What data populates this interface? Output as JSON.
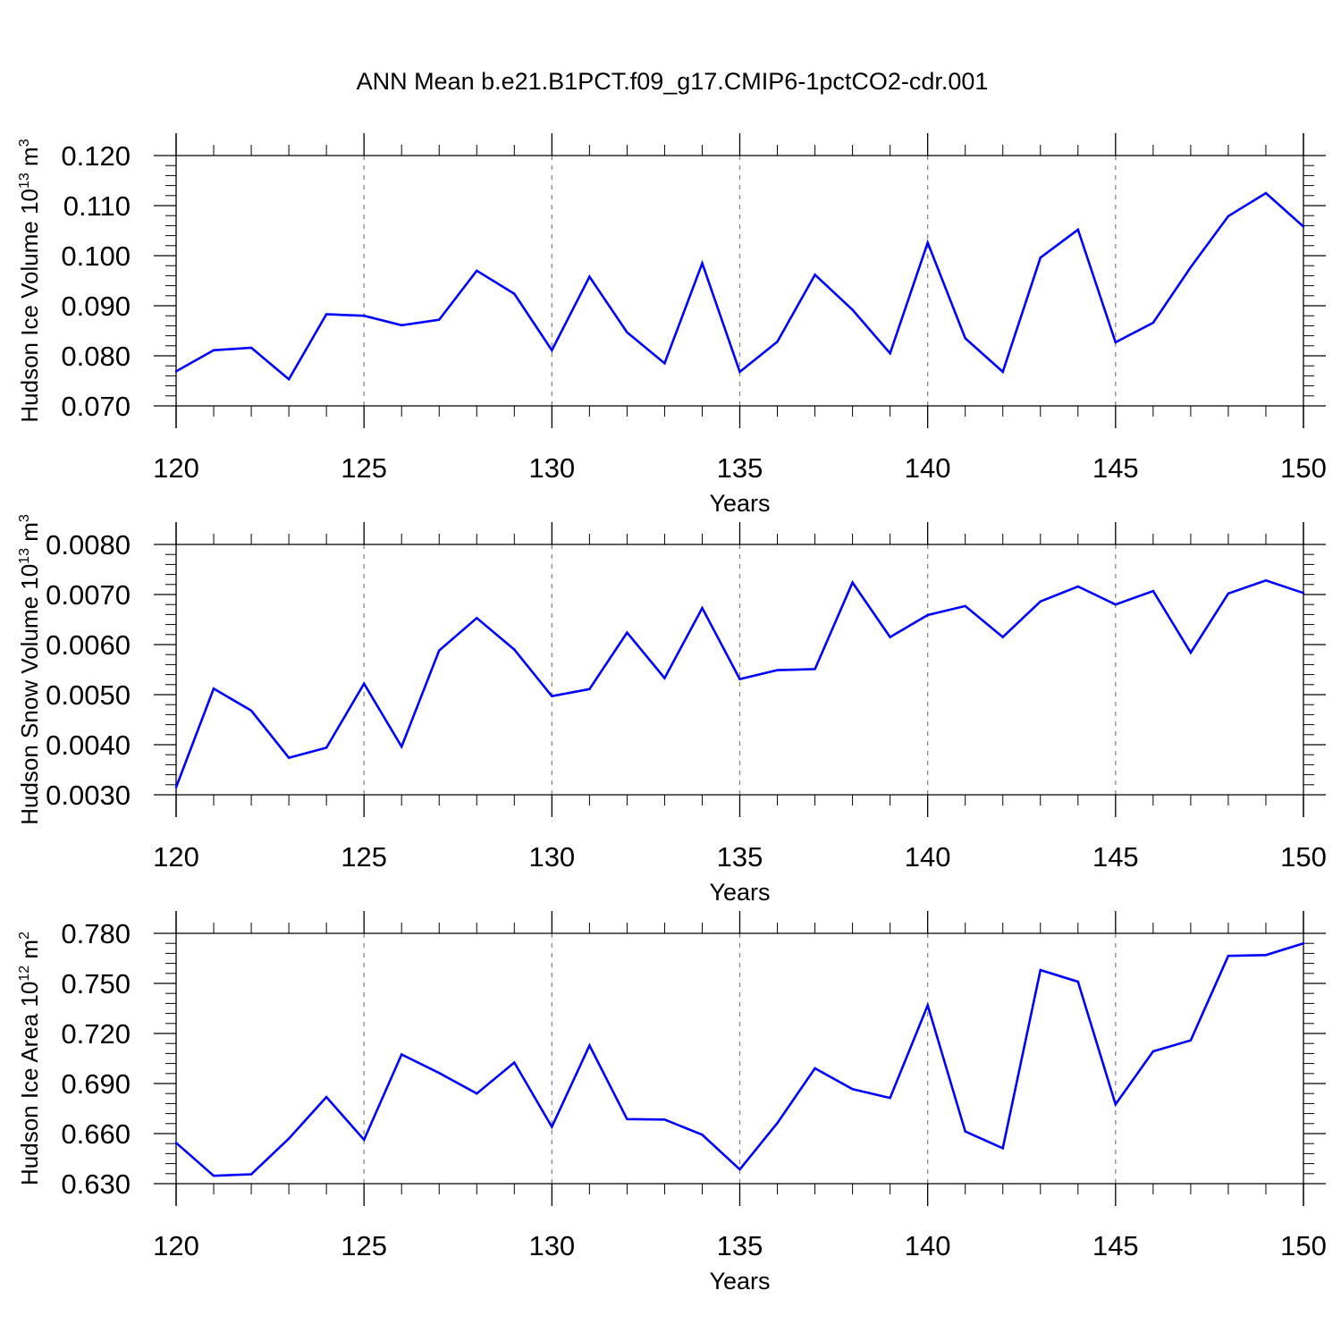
{
  "title": "ANN Mean b.e21.B1PCT.f09_g17.CMIP6-1pctCO2-cdr.001",
  "line_color": "#0000ff",
  "chart_data": [
    {
      "type": "line",
      "ylabel": {
        "main": "Hudson Ice Volume 10",
        "exp": "13",
        "unit": "m",
        "unit_exp": "3"
      },
      "xlabel": "Years",
      "xlim": [
        120,
        150
      ],
      "ylim": [
        0.07,
        0.12
      ],
      "xticks": [
        120,
        125,
        130,
        135,
        140,
        145,
        150
      ],
      "xtick_labels": [
        "120",
        "125",
        "130",
        "135",
        "140",
        "145",
        "150"
      ],
      "yticks": [
        0.07,
        0.08,
        0.09,
        0.1,
        0.11,
        0.12
      ],
      "ytick_labels": [
        "0.070",
        "0.080",
        "0.090",
        "0.100",
        "0.110",
        "0.120"
      ],
      "x": [
        120,
        121,
        122,
        123,
        124,
        125,
        126,
        127,
        128,
        129,
        130,
        131,
        132,
        133,
        134,
        135,
        136,
        137,
        138,
        139,
        140,
        141,
        142,
        143,
        144,
        145,
        146,
        147,
        148,
        149,
        150
      ],
      "values": [
        0.0769,
        0.0811,
        0.0816,
        0.0753,
        0.0883,
        0.088,
        0.0861,
        0.0872,
        0.097,
        0.0924,
        0.0811,
        0.0958,
        0.0847,
        0.0785,
        0.0985,
        0.0768,
        0.0828,
        0.0962,
        0.0892,
        0.0805,
        0.1026,
        0.0835,
        0.0768,
        0.0996,
        0.1052,
        0.0827,
        0.0866,
        0.0977,
        0.1079,
        0.1125,
        0.1058
      ]
    },
    {
      "type": "line",
      "ylabel": {
        "main": "Hudson Snow Volume 10",
        "exp": "13",
        "unit": "m",
        "unit_exp": "3"
      },
      "xlabel": "Years",
      "xlim": [
        120,
        150
      ],
      "ylim": [
        0.003,
        0.008
      ],
      "xticks": [
        120,
        125,
        130,
        135,
        140,
        145,
        150
      ],
      "xtick_labels": [
        "120",
        "125",
        "130",
        "135",
        "140",
        "145",
        "150"
      ],
      "yticks": [
        0.003,
        0.004,
        0.005,
        0.006,
        0.007,
        0.008
      ],
      "ytick_labels": [
        "0.0030",
        "0.0040",
        "0.0050",
        "0.0060",
        "0.0070",
        "0.0080"
      ],
      "x": [
        120,
        121,
        122,
        123,
        124,
        125,
        126,
        127,
        128,
        129,
        130,
        131,
        132,
        133,
        134,
        135,
        136,
        137,
        138,
        139,
        140,
        141,
        142,
        143,
        144,
        145,
        146,
        147,
        148,
        149,
        150
      ],
      "values": [
        0.00315,
        0.00512,
        0.00468,
        0.00374,
        0.00394,
        0.00522,
        0.00396,
        0.00588,
        0.00653,
        0.0059,
        0.00497,
        0.00511,
        0.00624,
        0.00533,
        0.00673,
        0.00531,
        0.00549,
        0.00551,
        0.00724,
        0.00615,
        0.00659,
        0.00677,
        0.00615,
        0.00686,
        0.00716,
        0.0068,
        0.00707,
        0.00584,
        0.00702,
        0.00728,
        0.00703
      ]
    },
    {
      "type": "line",
      "ylabel": {
        "main": "Hudson Ice Area 10",
        "exp": "12",
        "unit": "m",
        "unit_exp": "2"
      },
      "xlabel": "Years",
      "xlim": [
        120,
        150
      ],
      "ylim": [
        0.63,
        0.78
      ],
      "xticks": [
        120,
        125,
        130,
        135,
        140,
        145,
        150
      ],
      "xtick_labels": [
        "120",
        "125",
        "130",
        "135",
        "140",
        "145",
        "150"
      ],
      "yticks": [
        0.63,
        0.66,
        0.69,
        0.72,
        0.75,
        0.78
      ],
      "ytick_labels": [
        "0.630",
        "0.660",
        "0.690",
        "0.720",
        "0.750",
        "0.780"
      ],
      "x": [
        120,
        121,
        122,
        123,
        124,
        125,
        126,
        127,
        128,
        129,
        130,
        131,
        132,
        133,
        134,
        135,
        136,
        137,
        138,
        139,
        140,
        141,
        142,
        143,
        144,
        145,
        146,
        147,
        148,
        149,
        150
      ],
      "values": [
        0.6545,
        0.6347,
        0.6356,
        0.657,
        0.6819,
        0.6563,
        0.7074,
        0.6963,
        0.684,
        0.7026,
        0.664,
        0.7128,
        0.6687,
        0.6684,
        0.6593,
        0.6385,
        0.6663,
        0.6991,
        0.6866,
        0.6814,
        0.7369,
        0.6613,
        0.6512,
        0.758,
        0.751,
        0.6775,
        0.7093,
        0.7159,
        0.7665,
        0.767,
        0.774
      ]
    }
  ]
}
